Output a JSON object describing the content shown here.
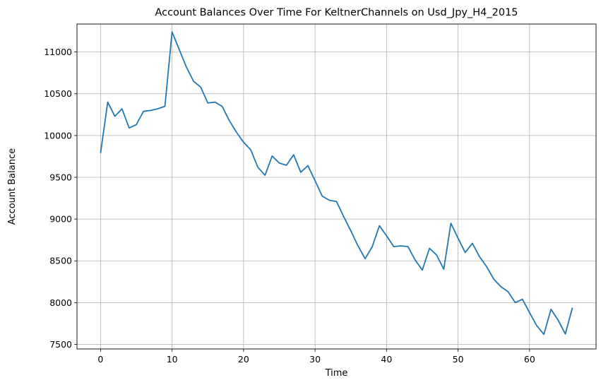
{
  "chart_data": {
    "type": "line",
    "title": "Account Balances Over Time For KeltnerChannels on Usd_Jpy_H4_2015",
    "xlabel": "Time",
    "ylabel": "Account Balance",
    "xlim": [
      -3.3,
      69.3
    ],
    "ylim": [
      7445,
      11335
    ],
    "xticks": [
      0,
      10,
      20,
      30,
      40,
      50,
      60
    ],
    "yticks": [
      7500,
      8000,
      8500,
      9000,
      9500,
      10000,
      10500,
      11000
    ],
    "grid": true,
    "line_color": "#1f77b4",
    "series": [
      {
        "x": [
          0,
          1,
          2,
          3,
          4,
          5,
          6,
          7,
          8,
          9,
          10,
          11,
          12,
          13,
          14,
          15,
          16,
          17,
          18,
          19,
          20,
          21,
          22,
          23,
          24,
          25,
          26,
          27,
          28,
          29,
          30,
          31,
          32,
          33,
          34,
          35,
          36,
          37,
          38,
          39,
          40,
          41,
          42,
          43,
          44,
          45,
          46,
          47,
          48,
          49,
          50,
          51,
          52,
          53,
          54,
          55,
          56,
          57,
          58,
          59,
          60,
          61,
          62,
          63,
          64,
          65,
          66
        ],
        "values": [
          9790,
          10400,
          10230,
          10320,
          10090,
          10130,
          10290,
          10300,
          10320,
          10350,
          11240,
          11030,
          10820,
          10650,
          10580,
          10390,
          10400,
          10350,
          10180,
          10040,
          9920,
          9830,
          9620,
          9525,
          9755,
          9670,
          9645,
          9770,
          9560,
          9640,
          9460,
          9275,
          9225,
          9210,
          9030,
          8860,
          8680,
          8525,
          8670,
          8920,
          8800,
          8670,
          8680,
          8670,
          8510,
          8390,
          8650,
          8570,
          8400,
          8950,
          8770,
          8600,
          8710,
          8550,
          8430,
          8280,
          8190,
          8130,
          8000,
          8040,
          7880,
          7725,
          7620,
          7920,
          7790,
          7625,
          7940
        ]
      }
    ]
  }
}
